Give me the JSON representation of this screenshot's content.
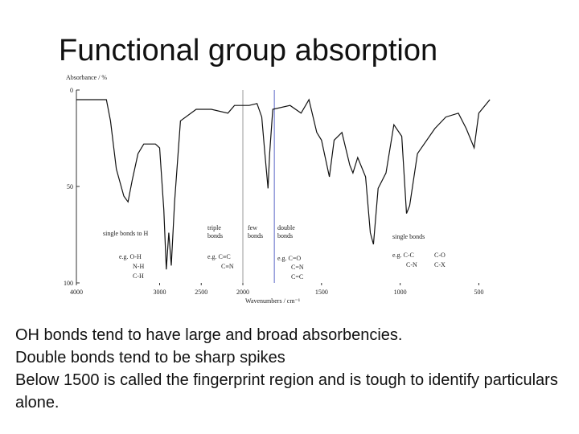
{
  "slide": {
    "title": "Functional group absorption",
    "body": [
      "OH bonds tend to have large and broad absorbencies.",
      "Double bonds tend to be sharp spikes",
      "Below 1500 is called the fingerprint region and is tough to identify particulars alone."
    ]
  },
  "chart_data": {
    "type": "line",
    "ylabel": "Absorbance / %",
    "xlabel": "Wavenumbers / cm⁻¹",
    "x": [
      4000,
      3640,
      3590,
      3520,
      3430,
      3380,
      3330,
      3260,
      3190,
      3050,
      3000,
      2950,
      2920,
      2890,
      2860,
      2820,
      2750,
      2560,
      2380,
      2180,
      2100,
      2000,
      1960,
      1910,
      1880,
      1860,
      1840,
      1830,
      1810,
      1700,
      1630,
      1580,
      1530,
      1500,
      1450,
      1420,
      1370,
      1320,
      1300,
      1270,
      1220,
      1190,
      1170,
      1140,
      1090,
      1040,
      990,
      960,
      940,
      890,
      780,
      710,
      630,
      580,
      530,
      500,
      430
    ],
    "values": [
      5,
      5,
      16,
      41,
      55,
      58,
      47,
      33,
      28,
      28,
      30,
      62,
      93,
      74,
      91,
      58,
      16,
      10,
      10,
      12,
      8,
      8,
      8,
      7,
      14,
      33,
      51,
      33,
      10,
      8,
      12,
      5,
      22,
      26,
      45,
      26,
      22,
      39,
      43,
      35,
      45,
      74,
      80,
      51,
      43,
      18,
      24,
      64,
      60,
      33,
      20,
      14,
      12,
      20,
      30,
      12,
      5
    ],
    "color": "#111111",
    "xlim": [
      4000,
      400
    ],
    "xticks": [
      4000,
      3000,
      2500,
      2000,
      1500,
      1000,
      500
    ],
    "x_break": 2000,
    "ylim": [
      0,
      100
    ],
    "yticks": [
      0,
      50,
      100
    ],
    "y_inverted": true,
    "region_lines": [
      {
        "value": 2000,
        "color": "#9a9a9a"
      },
      {
        "value": 1800,
        "color": "#5a66c8"
      }
    ],
    "annotations": [
      "single bonds to H",
      "e.g. O-H",
      "N-H",
      "C-H",
      "triple bonds",
      "e.g. C≡C",
      "C≡N",
      "few bonds",
      "double bonds",
      "e.g. C=O",
      "C=N",
      "C=C",
      "single bonds",
      "e.g. C-C",
      "C-N",
      "C-O",
      "C-X"
    ]
  }
}
